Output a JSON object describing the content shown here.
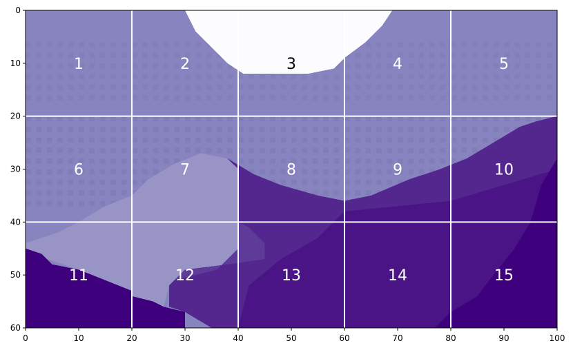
{
  "chart_data": {
    "type": "image",
    "xlim": [
      0,
      100
    ],
    "ylim": [
      60,
      0
    ],
    "xticks": [
      0,
      10,
      20,
      30,
      40,
      50,
      60,
      70,
      80,
      90,
      100
    ],
    "yticks": [
      0,
      10,
      20,
      30,
      40,
      50,
      60
    ],
    "grid_x": [
      20,
      40,
      60,
      80
    ],
    "grid_y": [
      20,
      40
    ],
    "grid_color": "#ffffff",
    "labels": [
      {
        "text": "1",
        "color": "#ffffff"
      },
      {
        "text": "2",
        "color": "#ffffff"
      },
      {
        "text": "3",
        "color": "#000000"
      },
      {
        "text": "4",
        "color": "#ffffff"
      },
      {
        "text": "5",
        "color": "#ffffff"
      },
      {
        "text": "6",
        "color": "#ffffff"
      },
      {
        "text": "7",
        "color": "#ffffff"
      },
      {
        "text": "8",
        "color": "#ffffff"
      },
      {
        "text": "9",
        "color": "#ffffff"
      },
      {
        "text": "10",
        "color": "#ffffff"
      },
      {
        "text": "11",
        "color": "#ffffff"
      },
      {
        "text": "12",
        "color": "#ffffff"
      },
      {
        "text": "13",
        "color": "#ffffff"
      },
      {
        "text": "14",
        "color": "#ffffff"
      },
      {
        "text": "15",
        "color": "#ffffff"
      }
    ]
  }
}
